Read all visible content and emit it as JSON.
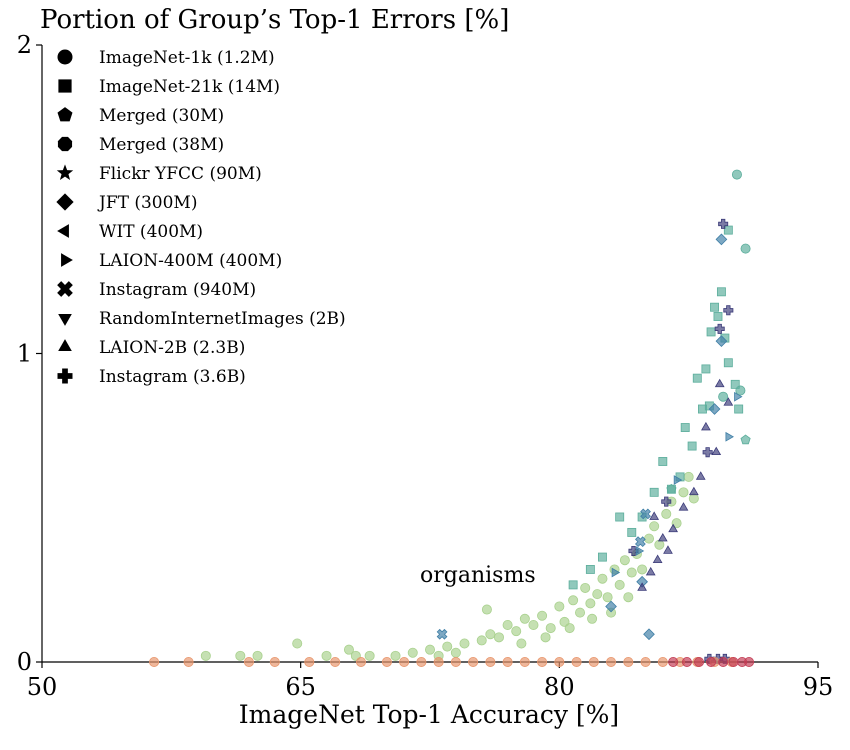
{
  "chart_data": {
    "type": "scatter",
    "title": "Portion of Group’s Top-1 Errors [%]",
    "xlabel": "ImageNet Top-1 Accuracy [%]",
    "ylabel": "",
    "xlim": [
      50,
      95
    ],
    "ylim": [
      0,
      2
    ],
    "xticks": [
      "50",
      "65",
      "80",
      "95"
    ],
    "yticks": [
      "0",
      "1",
      "2"
    ],
    "annotation": "organisms",
    "grid": false,
    "legend_position": "top-left",
    "legend": [
      {
        "label": "ImageNet-1k (1.2M)",
        "marker": "circle"
      },
      {
        "label": "ImageNet-21k (14M)",
        "marker": "square"
      },
      {
        "label": "Merged (30M)",
        "marker": "pentagon"
      },
      {
        "label": "Merged (38M)",
        "marker": "octagon"
      },
      {
        "label": "Flickr YFCC (90M)",
        "marker": "star"
      },
      {
        "label": "JFT (300M)",
        "marker": "diamond"
      },
      {
        "label": "WIT (400M)",
        "marker": "triangle-left"
      },
      {
        "label": "LAION-400M (400M)",
        "marker": "triangle-right"
      },
      {
        "label": "Instagram (940M)",
        "marker": "x-filled"
      },
      {
        "label": "RandomInternetImages (2B)",
        "marker": "triangle-down"
      },
      {
        "label": "LAION-2B (2.3B)",
        "marker": "triangle-up"
      },
      {
        "label": "Instagram (3.6B)",
        "marker": "plus-filled"
      }
    ],
    "colors": {
      "light_green": "#a9d18e",
      "teal": "#5cae9c",
      "steel_blue": "#3f7fa6",
      "dark_purple": "#3c3c7a",
      "salmon": "#e8956b",
      "crimson": "#c23a52"
    },
    "series": [
      {
        "marker": "circle",
        "color": "light_green",
        "points": [
          [
            59.5,
            0.02
          ],
          [
            61.5,
            0.02
          ],
          [
            62.5,
            0.02
          ],
          [
            64.8,
            0.06
          ],
          [
            66.5,
            0.02
          ],
          [
            67.8,
            0.04
          ],
          [
            69,
            0.02
          ],
          [
            70.5,
            0.02
          ],
          [
            71.5,
            0.03
          ],
          [
            72.5,
            0.04
          ],
          [
            73.5,
            0.05
          ],
          [
            74.5,
            0.06
          ],
          [
            75.5,
            0.07
          ],
          [
            75.8,
            0.17
          ],
          [
            76.5,
            0.08
          ],
          [
            77,
            0.12
          ],
          [
            77.5,
            0.1
          ],
          [
            78,
            0.14
          ],
          [
            78.5,
            0.12
          ],
          [
            79,
            0.15
          ],
          [
            79.5,
            0.11
          ],
          [
            80,
            0.18
          ],
          [
            80.3,
            0.13
          ],
          [
            80.8,
            0.2
          ],
          [
            81.2,
            0.16
          ],
          [
            81.5,
            0.24
          ],
          [
            81.8,
            0.19
          ],
          [
            82.2,
            0.22
          ],
          [
            82.5,
            0.27
          ],
          [
            82.8,
            0.21
          ],
          [
            83.2,
            0.3
          ],
          [
            83.5,
            0.25
          ],
          [
            83.8,
            0.33
          ],
          [
            84.2,
            0.29
          ],
          [
            84.5,
            0.35
          ],
          [
            84.8,
            0.3
          ],
          [
            85.2,
            0.4
          ],
          [
            85.5,
            0.44
          ],
          [
            85.8,
            0.38
          ],
          [
            86.2,
            0.48
          ],
          [
            86.5,
            0.52
          ],
          [
            86.8,
            0.45
          ],
          [
            87.2,
            0.55
          ],
          [
            87.5,
            0.6
          ],
          [
            87.8,
            0.53
          ],
          [
            76,
            0.09
          ],
          [
            77.8,
            0.06
          ],
          [
            79.2,
            0.08
          ],
          [
            80.6,
            0.11
          ],
          [
            81.9,
            0.14
          ],
          [
            83,
            0.16
          ],
          [
            84,
            0.21
          ],
          [
            73,
            0.02
          ],
          [
            74,
            0.03
          ],
          [
            68.2,
            0.02
          ]
        ]
      },
      {
        "marker": "square",
        "color": "teal",
        "points": [
          [
            80.8,
            0.25
          ],
          [
            81.8,
            0.3
          ],
          [
            82.5,
            0.34
          ],
          [
            83.5,
            0.47
          ],
          [
            84.2,
            0.42
          ],
          [
            84.8,
            0.47
          ],
          [
            85.5,
            0.55
          ],
          [
            86,
            0.65
          ],
          [
            86.5,
            0.56
          ],
          [
            87,
            0.6
          ],
          [
            87.3,
            0.76
          ],
          [
            87.7,
            0.7
          ],
          [
            88,
            0.92
          ],
          [
            88.3,
            0.82
          ],
          [
            88.5,
            0.95
          ],
          [
            88.8,
            1.07
          ],
          [
            89,
            1.15
          ],
          [
            89.2,
            1.12
          ],
          [
            89.4,
            1.2
          ],
          [
            89.6,
            1.05
          ],
          [
            89.8,
            0.97
          ],
          [
            90.2,
            0.9
          ],
          [
            90.4,
            0.82
          ],
          [
            89.8,
            1.4
          ],
          [
            88.7,
            0.83
          ]
        ]
      },
      {
        "marker": "circle",
        "color": "teal",
        "points": [
          [
            90.3,
            1.58
          ],
          [
            90.8,
            1.34
          ],
          [
            90.5,
            0.88
          ],
          [
            89.5,
            0.86
          ]
        ]
      },
      {
        "marker": "diamond",
        "color": "steel_blue",
        "points": [
          [
            89.4,
            1.37
          ],
          [
            89.4,
            1.04
          ],
          [
            89,
            0.82
          ],
          [
            85.2,
            0.09
          ],
          [
            83,
            0.18
          ],
          [
            84.8,
            0.26
          ]
        ]
      },
      {
        "marker": "plus-filled",
        "color": "dark_purple",
        "points": [
          [
            89.5,
            1.42
          ],
          [
            89.8,
            1.14
          ],
          [
            89.3,
            1.08
          ],
          [
            88.6,
            0.68
          ],
          [
            86.2,
            0.52
          ],
          [
            84.3,
            0.36
          ],
          [
            89.6,
            0.01
          ],
          [
            89.2,
            0.01
          ],
          [
            88.7,
            0.01
          ]
        ]
      },
      {
        "marker": "triangle-up",
        "color": "dark_purple",
        "points": [
          [
            89.3,
            0.9
          ],
          [
            89.8,
            0.84
          ],
          [
            88.5,
            0.76
          ],
          [
            89.1,
            0.68
          ],
          [
            88.2,
            0.6
          ],
          [
            87.8,
            0.55
          ],
          [
            87.2,
            0.5
          ],
          [
            86.6,
            0.43
          ],
          [
            86,
            0.4
          ],
          [
            85.7,
            0.33
          ],
          [
            85.3,
            0.29
          ],
          [
            84.8,
            0.24
          ],
          [
            85.5,
            0.47
          ],
          [
            86.3,
            0.36
          ]
        ]
      },
      {
        "marker": "triangle-right",
        "color": "steel_blue",
        "points": [
          [
            90.3,
            0.86
          ],
          [
            89.8,
            0.73
          ],
          [
            86.8,
            0.59
          ],
          [
            84.6,
            0.36
          ],
          [
            83.2,
            0.29
          ]
        ]
      },
      {
        "marker": "pentagon",
        "color": "teal",
        "points": [
          [
            90.8,
            0.72
          ],
          [
            86.5,
            0.56
          ]
        ]
      },
      {
        "marker": "x-filled",
        "color": "steel_blue",
        "points": [
          [
            73.2,
            0.09
          ],
          [
            85,
            0.48
          ],
          [
            84.7,
            0.39
          ]
        ]
      },
      {
        "marker": "circle",
        "color": "salmon",
        "points": [
          [
            56.5,
            0
          ],
          [
            58.5,
            0
          ],
          [
            62,
            0
          ],
          [
            63.5,
            0
          ],
          [
            65.5,
            0
          ],
          [
            67,
            0
          ],
          [
            68.5,
            0
          ],
          [
            70,
            0
          ],
          [
            71,
            0
          ],
          [
            72,
            0
          ],
          [
            73,
            0
          ],
          [
            74,
            0
          ],
          [
            75,
            0
          ],
          [
            76,
            0
          ],
          [
            77,
            0
          ],
          [
            78,
            0
          ],
          [
            79,
            0
          ],
          [
            80,
            0
          ],
          [
            81,
            0
          ],
          [
            82,
            0
          ],
          [
            83,
            0
          ],
          [
            84,
            0
          ],
          [
            85,
            0
          ],
          [
            86,
            0
          ],
          [
            87,
            0
          ],
          [
            88,
            0
          ],
          [
            89,
            0
          ],
          [
            90,
            0
          ]
        ]
      },
      {
        "marker": "circle",
        "color": "crimson",
        "points": [
          [
            86.6,
            0
          ],
          [
            87.4,
            0
          ],
          [
            88.1,
            0
          ],
          [
            88.8,
            0
          ],
          [
            89.5,
            0
          ],
          [
            90.1,
            0
          ],
          [
            90.6,
            0
          ],
          [
            91,
            0
          ]
        ]
      }
    ]
  }
}
